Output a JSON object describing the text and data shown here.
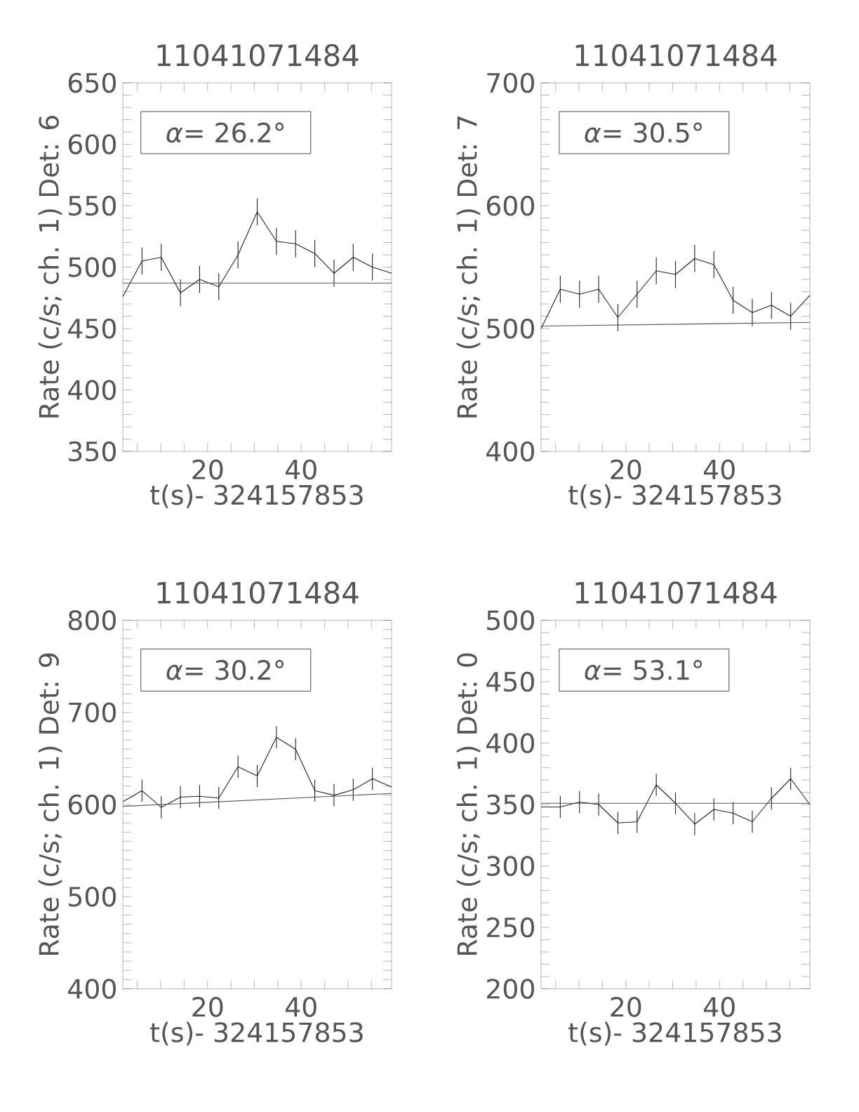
{
  "chart_data": [
    {
      "type": "line",
      "title": "11041071484",
      "xlabel": "t(s)- 324157853",
      "ylabel": "Rate (c/s; ch. 1) Det: 6",
      "annotations": [
        "*α*= 26.2°"
      ],
      "marker": "none",
      "line_style": "solid",
      "xlim": [
        1.9,
        59.3
      ],
      "xticks": [
        {
          "value": 5,
          "label": null
        },
        {
          "value": 10,
          "label": null
        },
        {
          "value": 15,
          "label": null
        },
        20,
        {
          "value": 25,
          "label": null
        },
        {
          "value": 30,
          "label": null
        },
        {
          "value": 35,
          "label": null
        },
        40,
        {
          "value": 45,
          "label": null
        },
        {
          "value": 50,
          "label": null
        },
        {
          "value": 55,
          "label": null
        }
      ],
      "ylim": [
        350,
        650
      ],
      "yticks": [
        350,
        {
          "value": 360,
          "label": null
        },
        {
          "value": 370,
          "label": null
        },
        {
          "value": 380,
          "label": null
        },
        {
          "value": 390,
          "label": null
        },
        400,
        {
          "value": 410,
          "label": null
        },
        {
          "value": 420,
          "label": null
        },
        {
          "value": 430,
          "label": null
        },
        {
          "value": 440,
          "label": null
        },
        450,
        {
          "value": 460,
          "label": null
        },
        {
          "value": 470,
          "label": null
        },
        {
          "value": 480,
          "label": null
        },
        {
          "value": 490,
          "label": null
        },
        500,
        {
          "value": 510,
          "label": null
        },
        {
          "value": 520,
          "label": null
        },
        {
          "value": 530,
          "label": null
        },
        {
          "value": 540,
          "label": null
        },
        550,
        {
          "value": 560,
          "label": null
        },
        {
          "value": 570,
          "label": null
        },
        {
          "value": 580,
          "label": null
        },
        {
          "value": 590,
          "label": null
        },
        600,
        {
          "value": 610,
          "label": null
        },
        {
          "value": 620,
          "label": null
        },
        {
          "value": 630,
          "label": null
        },
        {
          "value": 640,
          "label": null
        },
        650
      ],
      "series": [
        {
          "color": "#222222",
          "x": [
            1.9,
            6.0,
            10.1,
            14.2,
            18.3,
            22.4,
            26.5,
            30.6,
            34.7,
            38.8,
            42.9,
            47.0,
            51.1,
            55.2,
            59.3
          ],
          "values": [
            476,
            505,
            508,
            479,
            490,
            484,
            510,
            545,
            521,
            519,
            511,
            495,
            508,
            500,
            495
          ],
          "errors": [
            null,
            11,
            11,
            11,
            11,
            11,
            11,
            11,
            11,
            11,
            11,
            11,
            11,
            11,
            null
          ]
        },
        {
          "type": "line",
          "color": "#555555",
          "x": [
            1.9,
            59.3
          ],
          "values": [
            487,
            487
          ]
        }
      ]
    },
    {
      "type": "line",
      "title": "11041071484",
      "xlabel": "t(s)- 324157853",
      "ylabel": "Rate (c/s; ch. 1) Det: 7",
      "annotations": [
        "*α*= 30.5°"
      ],
      "marker": "none",
      "line_style": "solid",
      "xlim": [
        1.9,
        59.3
      ],
      "xticks": [
        {
          "value": 5,
          "label": null
        },
        {
          "value": 10,
          "label": null
        },
        {
          "value": 15,
          "label": null
        },
        20,
        {
          "value": 25,
          "label": null
        },
        {
          "value": 30,
          "label": null
        },
        {
          "value": 35,
          "label": null
        },
        40,
        {
          "value": 45,
          "label": null
        },
        {
          "value": 50,
          "label": null
        },
        {
          "value": 55,
          "label": null
        }
      ],
      "ylim": [
        400,
        700
      ],
      "yticks": [
        400,
        {
          "value": 410,
          "label": null
        },
        {
          "value": 420,
          "label": null
        },
        {
          "value": 430,
          "label": null
        },
        {
          "value": 440,
          "label": null
        },
        {
          "value": 450,
          "label": null
        },
        {
          "value": 460,
          "label": null
        },
        {
          "value": 470,
          "label": null
        },
        {
          "value": 480,
          "label": null
        },
        {
          "value": 490,
          "label": null
        },
        500,
        {
          "value": 510,
          "label": null
        },
        {
          "value": 520,
          "label": null
        },
        {
          "value": 530,
          "label": null
        },
        {
          "value": 540,
          "label": null
        },
        {
          "value": 550,
          "label": null
        },
        {
          "value": 560,
          "label": null
        },
        {
          "value": 570,
          "label": null
        },
        {
          "value": 580,
          "label": null
        },
        {
          "value": 590,
          "label": null
        },
        600,
        {
          "value": 610,
          "label": null
        },
        {
          "value": 620,
          "label": null
        },
        {
          "value": 630,
          "label": null
        },
        {
          "value": 640,
          "label": null
        },
        {
          "value": 650,
          "label": null
        },
        {
          "value": 660,
          "label": null
        },
        {
          "value": 670,
          "label": null
        },
        {
          "value": 680,
          "label": null
        },
        {
          "value": 690,
          "label": null
        },
        700
      ],
      "series": [
        {
          "color": "#222222",
          "x": [
            1.9,
            6.0,
            10.1,
            14.2,
            18.3,
            22.4,
            26.5,
            30.6,
            34.7,
            38.8,
            42.9,
            47.0,
            51.1,
            55.2,
            59.3
          ],
          "values": [
            500,
            532,
            528,
            532,
            509,
            528,
            547,
            544,
            557,
            552,
            523,
            513,
            519,
            510,
            527
          ],
          "errors": [
            null,
            11,
            11,
            11,
            11,
            11,
            11,
            11,
            11,
            11,
            11,
            11,
            11,
            11,
            null
          ]
        },
        {
          "type": "line",
          "color": "#555555",
          "x": [
            1.9,
            59.3
          ],
          "values": [
            502,
            505
          ]
        }
      ]
    },
    {
      "type": "line",
      "title": "11041071484",
      "xlabel": "t(s)- 324157853",
      "ylabel": "Rate (c/s; ch. 1) Det: 9",
      "annotations": [
        "*α*= 30.2°"
      ],
      "marker": "none",
      "line_style": "solid",
      "xlim": [
        1.9,
        59.3
      ],
      "xticks": [
        {
          "value": 5,
          "label": null
        },
        {
          "value": 10,
          "label": null
        },
        {
          "value": 15,
          "label": null
        },
        20,
        {
          "value": 25,
          "label": null
        },
        {
          "value": 30,
          "label": null
        },
        {
          "value": 35,
          "label": null
        },
        40,
        {
          "value": 45,
          "label": null
        },
        {
          "value": 50,
          "label": null
        },
        {
          "value": 55,
          "label": null
        }
      ],
      "ylim": [
        400,
        800
      ],
      "yticks": [
        400,
        {
          "value": 410,
          "label": null
        },
        {
          "value": 420,
          "label": null
        },
        {
          "value": 430,
          "label": null
        },
        {
          "value": 440,
          "label": null
        },
        {
          "value": 450,
          "label": null
        },
        {
          "value": 460,
          "label": null
        },
        {
          "value": 470,
          "label": null
        },
        {
          "value": 480,
          "label": null
        },
        {
          "value": 490,
          "label": null
        },
        500,
        {
          "value": 510,
          "label": null
        },
        {
          "value": 520,
          "label": null
        },
        {
          "value": 530,
          "label": null
        },
        {
          "value": 540,
          "label": null
        },
        {
          "value": 550,
          "label": null
        },
        {
          "value": 560,
          "label": null
        },
        {
          "value": 570,
          "label": null
        },
        {
          "value": 580,
          "label": null
        },
        {
          "value": 590,
          "label": null
        },
        600,
        {
          "value": 610,
          "label": null
        },
        {
          "value": 620,
          "label": null
        },
        {
          "value": 630,
          "label": null
        },
        {
          "value": 640,
          "label": null
        },
        {
          "value": 650,
          "label": null
        },
        {
          "value": 660,
          "label": null
        },
        {
          "value": 670,
          "label": null
        },
        {
          "value": 680,
          "label": null
        },
        {
          "value": 690,
          "label": null
        },
        700,
        {
          "value": 710,
          "label": null
        },
        {
          "value": 720,
          "label": null
        },
        {
          "value": 730,
          "label": null
        },
        {
          "value": 740,
          "label": null
        },
        {
          "value": 750,
          "label": null
        },
        {
          "value": 760,
          "label": null
        },
        {
          "value": 770,
          "label": null
        },
        {
          "value": 780,
          "label": null
        },
        {
          "value": 790,
          "label": null
        },
        800
      ],
      "series": [
        {
          "color": "#222222",
          "x": [
            1.9,
            6.0,
            10.1,
            14.2,
            18.3,
            22.4,
            26.5,
            30.6,
            34.7,
            38.8,
            42.9,
            47.0,
            51.1,
            55.2,
            59.3
          ],
          "values": [
            603,
            615,
            597,
            608,
            609,
            607,
            641,
            631,
            673,
            660,
            615,
            610,
            616,
            628,
            619
          ],
          "errors": [
            null,
            12,
            12,
            12,
            12,
            12,
            12,
            12,
            12,
            12,
            12,
            12,
            12,
            12,
            null
          ]
        },
        {
          "type": "line",
          "color": "#555555",
          "x": [
            1.9,
            59.3
          ],
          "values": [
            598,
            612
          ]
        }
      ]
    },
    {
      "type": "line",
      "title": "11041071484",
      "xlabel": "t(s)- 324157853",
      "ylabel": "Rate (c/s; ch. 1) Det: 0",
      "annotations": [
        "*α*= 53.1°"
      ],
      "marker": "none",
      "line_style": "solid",
      "xlim": [
        1.9,
        59.3
      ],
      "xticks": [
        {
          "value": 5,
          "label": null
        },
        {
          "value": 10,
          "label": null
        },
        {
          "value": 15,
          "label": null
        },
        20,
        {
          "value": 25,
          "label": null
        },
        {
          "value": 30,
          "label": null
        },
        {
          "value": 35,
          "label": null
        },
        40,
        {
          "value": 45,
          "label": null
        },
        {
          "value": 50,
          "label": null
        },
        {
          "value": 55,
          "label": null
        }
      ],
      "ylim": [
        200,
        500
      ],
      "yticks": [
        200,
        {
          "value": 210,
          "label": null
        },
        {
          "value": 220,
          "label": null
        },
        {
          "value": 230,
          "label": null
        },
        {
          "value": 240,
          "label": null
        },
        250,
        {
          "value": 260,
          "label": null
        },
        {
          "value": 270,
          "label": null
        },
        {
          "value": 280,
          "label": null
        },
        {
          "value": 290,
          "label": null
        },
        300,
        {
          "value": 310,
          "label": null
        },
        {
          "value": 320,
          "label": null
        },
        {
          "value": 330,
          "label": null
        },
        {
          "value": 340,
          "label": null
        },
        350,
        {
          "value": 360,
          "label": null
        },
        {
          "value": 370,
          "label": null
        },
        {
          "value": 380,
          "label": null
        },
        {
          "value": 390,
          "label": null
        },
        400,
        {
          "value": 410,
          "label": null
        },
        {
          "value": 420,
          "label": null
        },
        {
          "value": 430,
          "label": null
        },
        {
          "value": 440,
          "label": null
        },
        450,
        {
          "value": 460,
          "label": null
        },
        {
          "value": 470,
          "label": null
        },
        {
          "value": 480,
          "label": null
        },
        {
          "value": 490,
          "label": null
        },
        500
      ],
      "series": [
        {
          "color": "#222222",
          "x": [
            1.9,
            6.0,
            10.1,
            14.2,
            18.3,
            22.4,
            26.5,
            30.6,
            34.7,
            38.8,
            42.9,
            47.0,
            51.1,
            55.2,
            59.3
          ],
          "values": [
            348,
            348,
            352,
            350,
            335,
            336,
            366,
            351,
            334,
            346,
            343,
            336,
            355,
            371,
            350
          ],
          "errors": [
            null,
            9,
            9,
            9,
            9,
            9,
            9,
            9,
            9,
            9,
            9,
            9,
            9,
            9,
            null
          ]
        },
        {
          "type": "line",
          "color": "#555555",
          "x": [
            1.9,
            59.3
          ],
          "values": [
            351,
            351
          ]
        }
      ]
    }
  ]
}
